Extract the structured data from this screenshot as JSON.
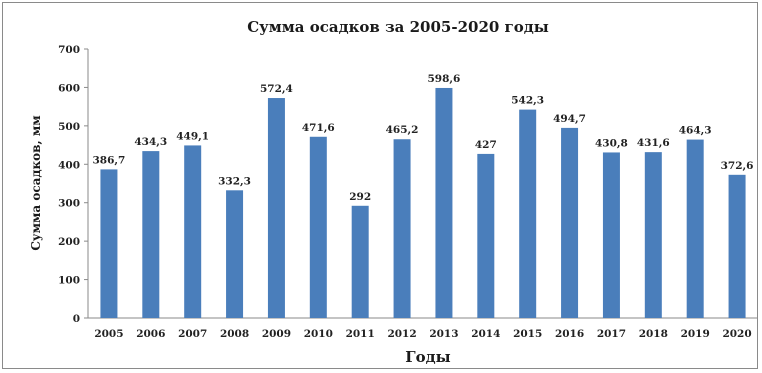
{
  "chart_data": {
    "type": "bar",
    "title": "Сумма осадков за 2005-2020 годы",
    "xlabel": "Годы",
    "ylabel": "Сумма осадков, мм",
    "ylim": [
      0,
      700
    ],
    "yticks": [
      0,
      100,
      200,
      300,
      400,
      500,
      600,
      700
    ],
    "grid": false,
    "legend": "none",
    "bar_color": "#4a7ebb",
    "categories": [
      "2005",
      "2006",
      "2007",
      "2008",
      "2009",
      "2010",
      "2011",
      "2012",
      "2013",
      "2014",
      "2015",
      "2016",
      "2017",
      "2018",
      "2019",
      "2020"
    ],
    "values": [
      386.7,
      434.3,
      449.1,
      332.3,
      572.4,
      471.6,
      292,
      465.2,
      598.6,
      427,
      542.3,
      494.7,
      430.8,
      431.6,
      464.3,
      372.6
    ],
    "value_labels": [
      "386,7",
      "434,3",
      "449,1",
      "332,3",
      "572,4",
      "471,6",
      "292",
      "465,2",
      "598,6",
      "427",
      "542,3",
      "494,7",
      "430,8",
      "431,6",
      "464,3",
      "372,6"
    ]
  }
}
